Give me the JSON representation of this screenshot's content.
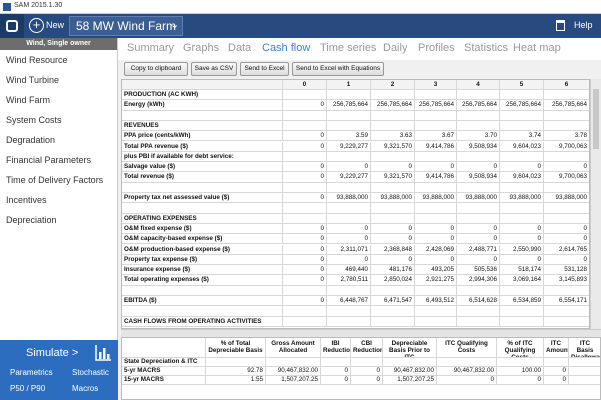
{
  "window_title": "SAM 2015.1.30",
  "toolbar": {
    "new": "New",
    "project": "58 MW Wind Farm",
    "help": "Help"
  },
  "sidebar": {
    "header": "Wind, Single owner",
    "items": [
      "Wind Resource",
      "Wind Turbine",
      "Wind Farm",
      "System Costs",
      "Degradation",
      "Financial Parameters",
      "Time of Delivery Factors",
      "Incentives",
      "Depreciation"
    ]
  },
  "simulate": {
    "button": "Simulate >",
    "links": [
      "Parametrics",
      "Stochastic",
      "P50 / P90",
      "Macros"
    ]
  },
  "tabs": {
    "items": [
      "Summary",
      "Graphs",
      "Data",
      "Cash flow",
      "Time series",
      "Daily",
      "Profiles",
      "Statistics",
      "Heat map"
    ],
    "active": 3
  },
  "buttons": [
    "Copy to clipboard",
    "Save as CSV",
    "Send to Excel",
    "Send to Excel with Equations"
  ],
  "cash_flow": {
    "columns": [
      "0",
      "1",
      "2",
      "3",
      "4",
      "5",
      "6"
    ],
    "rows": [
      {
        "label": "PRODUCTION (AC KWH)",
        "bold": true
      },
      {
        "label": "Energy (kWh)",
        "cells": [
          "0",
          "256,785,664",
          "256,785,664",
          "256,785,664",
          "256,785,664",
          "256,785,664",
          "256,785,664"
        ]
      },
      null,
      {
        "label": "REVENUES",
        "bold": true
      },
      {
        "label": "PPA price (cents/kWh)",
        "cells": [
          "0",
          "3.59",
          "3.63",
          "3.67",
          "3.70",
          "3.74",
          "3.78"
        ]
      },
      {
        "label": "Total PPA revenue ($)",
        "cells": [
          "0",
          "9,229,277",
          "9,321,570",
          "9,414,786",
          "9,508,934",
          "9,604,023",
          "9,700,063"
        ]
      },
      {
        "label": "plus PBI if available for debt service:",
        "bold": true
      },
      {
        "label": "Salvage value ($)",
        "cells": [
          "0",
          "0",
          "0",
          "0",
          "0",
          "0",
          "0"
        ]
      },
      {
        "label": "Total revenue ($)",
        "cells": [
          "0",
          "9,229,277",
          "9,321,570",
          "9,414,786",
          "9,508,934",
          "9,604,023",
          "9,700,063"
        ]
      },
      null,
      {
        "label": "Property tax net assessed value ($)",
        "cells": [
          "0",
          "93,888,000",
          "93,888,000",
          "93,888,000",
          "93,888,000",
          "93,888,000",
          "93,888,000"
        ]
      },
      null,
      {
        "label": "OPERATING EXPENSES",
        "bold": true
      },
      {
        "label": "O&M fixed expense ($)",
        "cells": [
          "0",
          "0",
          "0",
          "0",
          "0",
          "0",
          "0"
        ]
      },
      {
        "label": "O&M capacity-based expense ($)",
        "cells": [
          "0",
          "0",
          "0",
          "0",
          "0",
          "0",
          "0"
        ]
      },
      {
        "label": "O&M production-based expense ($)",
        "cells": [
          "0",
          "2,311,071",
          "2,368,848",
          "2,428,069",
          "2,488,771",
          "2,550,990",
          "2,614,765"
        ]
      },
      {
        "label": "Property tax expense ($)",
        "cells": [
          "0",
          "0",
          "0",
          "0",
          "0",
          "0",
          "0"
        ]
      },
      {
        "label": "Insurance expense ($)",
        "cells": [
          "0",
          "469,440",
          "481,176",
          "493,205",
          "505,536",
          "518,174",
          "531,128"
        ]
      },
      {
        "label": "Total operating expenses ($)",
        "cells": [
          "0",
          "2,780,511",
          "2,850,024",
          "2,921,275",
          "2,994,306",
          "3,069,164",
          "3,145,893"
        ]
      },
      null,
      {
        "label": "EBITDA ($)",
        "cells": [
          "0",
          "6,448,767",
          "6,471,547",
          "6,493,512",
          "6,514,628",
          "6,534,859",
          "6,554,171"
        ]
      },
      null,
      {
        "label": "CASH FLOWS FROM OPERATING ACTIVITIES",
        "bold": true
      }
    ]
  },
  "depreciation": {
    "headers": [
      "% of Total Depreciable Basis",
      "Gross Amount Allocated",
      "IBI Reduction",
      "CBI Reduction",
      "Depreciable Basis Prior to ITC",
      "ITC Qualifying Costs",
      "% of ITC Qualifying Costs",
      "ITC Amount",
      "ITC Basis Disallowa"
    ],
    "rows": [
      {
        "label": "State Depreciation & ITC",
        "bold": true
      },
      {
        "label": "5-yr MACRS",
        "cells": [
          "92.78",
          "90,467,832.00",
          "0",
          "0",
          "90,467,832.00",
          "90,467,832.00",
          "100.00",
          "0"
        ]
      },
      {
        "label": "15-yr MACRS",
        "cells": [
          "1.55",
          "1,507,207.25",
          "0",
          "0",
          "1,507,207.25",
          "0",
          "0",
          "0"
        ]
      }
    ]
  }
}
